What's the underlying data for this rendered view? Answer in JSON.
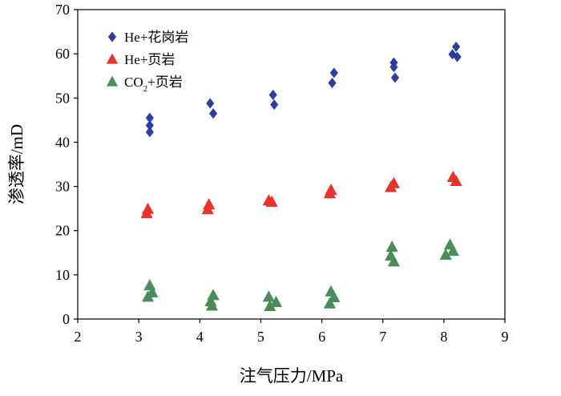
{
  "chart_data": {
    "type": "scatter",
    "title": "",
    "xlabel": "注气压力/MPa",
    "ylabel": "渗透率/mD",
    "xlim": [
      2,
      9
    ],
    "ylim": [
      0,
      70
    ],
    "xticks": [
      2,
      3,
      4,
      5,
      6,
      7,
      8,
      9
    ],
    "yticks": [
      0,
      10,
      20,
      30,
      40,
      50,
      60,
      70
    ],
    "grid": false,
    "legend_position": "top-left",
    "series": [
      {
        "name": "He+花岗岩",
        "legend_parts": {
          "before": "He+花岗岩",
          "sub": "",
          "after": ""
        },
        "marker": "diamond",
        "color": "#2E3E9E",
        "points": [
          [
            3.18,
            45.5
          ],
          [
            3.18,
            43.8
          ],
          [
            3.18,
            42.3
          ],
          [
            4.17,
            48.8
          ],
          [
            4.22,
            46.5
          ],
          [
            5.2,
            50.7
          ],
          [
            5.22,
            48.5
          ],
          [
            6.2,
            55.7
          ],
          [
            6.17,
            53.4
          ],
          [
            7.18,
            58.0
          ],
          [
            7.18,
            57.0
          ],
          [
            7.2,
            54.6
          ],
          [
            8.2,
            61.6
          ],
          [
            8.14,
            59.9
          ],
          [
            8.22,
            59.3
          ]
        ]
      },
      {
        "name": "He+页岩",
        "legend_parts": {
          "before": "He+页岩",
          "sub": "",
          "after": ""
        },
        "marker": "triangle",
        "color": "#E8332A",
        "points": [
          [
            3.15,
            24.9
          ],
          [
            3.13,
            23.9
          ],
          [
            4.15,
            25.9
          ],
          [
            4.13,
            24.8
          ],
          [
            5.13,
            26.8
          ],
          [
            5.18,
            26.5
          ],
          [
            6.15,
            29.2
          ],
          [
            6.13,
            28.4
          ],
          [
            7.18,
            30.7
          ],
          [
            7.13,
            29.8
          ],
          [
            8.15,
            32.1
          ],
          [
            8.2,
            31.2
          ]
        ]
      },
      {
        "name": "CO2+页岩",
        "legend_parts": {
          "before": "CO",
          "sub": "2",
          "after": "+页岩"
        },
        "marker": "triangle",
        "color": "#4A8C5C",
        "points": [
          [
            3.18,
            7.6
          ],
          [
            3.22,
            6.0
          ],
          [
            3.15,
            5.0
          ],
          [
            4.22,
            5.4
          ],
          [
            4.18,
            4.0
          ],
          [
            4.2,
            3.0
          ],
          [
            5.13,
            5.0
          ],
          [
            5.25,
            3.8
          ],
          [
            5.15,
            2.9
          ],
          [
            6.15,
            6.2
          ],
          [
            6.2,
            4.9
          ],
          [
            6.13,
            3.5
          ],
          [
            7.15,
            16.3
          ],
          [
            7.13,
            14.3
          ],
          [
            7.18,
            13.0
          ],
          [
            8.1,
            16.8
          ],
          [
            8.15,
            15.4
          ],
          [
            8.03,
            14.5
          ]
        ]
      }
    ]
  }
}
